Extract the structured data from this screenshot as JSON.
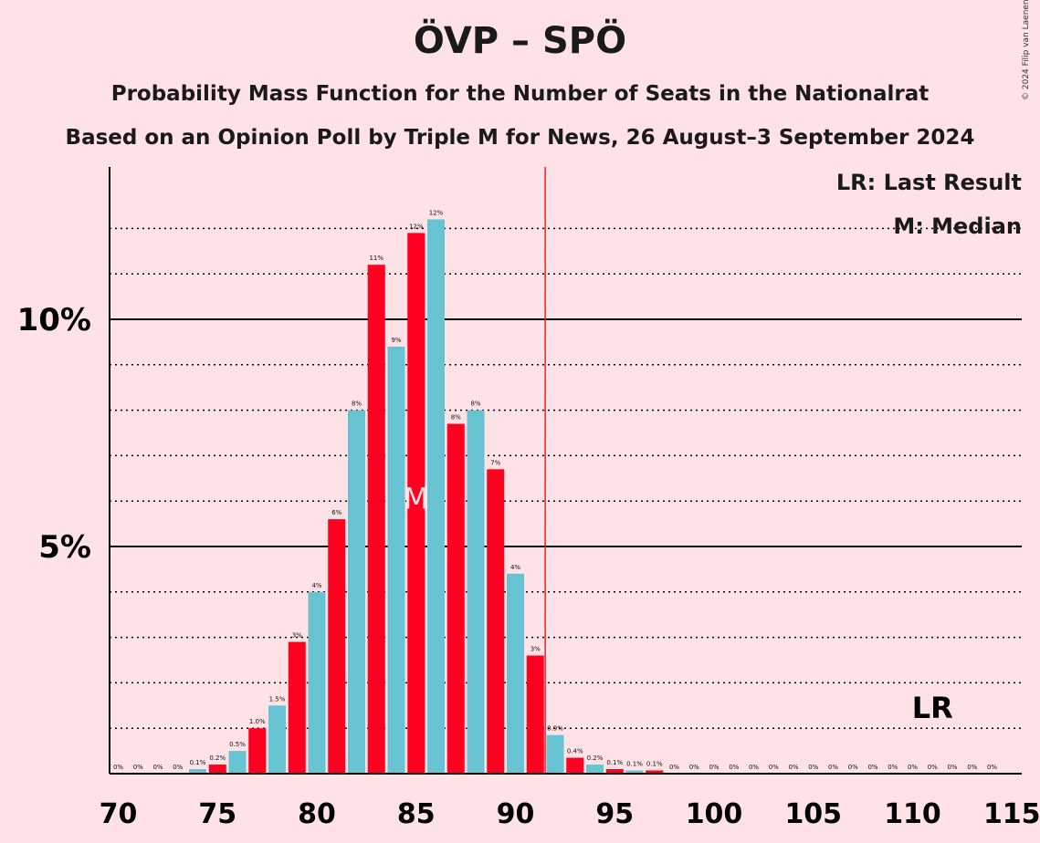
{
  "header": {
    "title": "ÖVP – SPÖ",
    "subtitle1": "Probability Mass Function for the Number of Seats in the Nationalrat",
    "subtitle2": "Based on an Opinion Poll by Triple M for News, 26 August–3 September 2024",
    "copyright": "© 2024 Filip van Laenen"
  },
  "legend": {
    "last_result": "LR: Last Result",
    "median": "M: Median"
  },
  "chart_data": {
    "type": "bar",
    "x": [
      70,
      71,
      72,
      73,
      74,
      75,
      76,
      77,
      78,
      79,
      80,
      81,
      82,
      83,
      84,
      85,
      86,
      87,
      88,
      89,
      90,
      91,
      92,
      93,
      94,
      95,
      96,
      97,
      98,
      99,
      100,
      101,
      102,
      103,
      104,
      105,
      106,
      107,
      108,
      109,
      110,
      111,
      112,
      113,
      114
    ],
    "values": [
      0,
      0,
      0,
      0,
      0.1,
      0.2,
      0.5,
      1.0,
      1.5,
      2.9,
      4.0,
      5.6,
      8.0,
      11.2,
      9.4,
      11.9,
      12.2,
      7.7,
      8.0,
      6.7,
      4.4,
      2.6,
      0.85,
      0.35,
      0.2,
      0.1,
      0.07,
      0.07,
      0,
      0,
      0,
      0,
      0,
      0,
      0,
      0,
      0,
      0,
      0,
      0,
      0,
      0,
      0,
      0,
      0
    ],
    "labels": [
      "0%",
      "0%",
      "0%",
      "0%",
      "0.1%",
      "0.2%",
      "0.5%",
      "1.0%",
      "1.5%",
      "3%",
      "4%",
      "6%",
      "8%",
      "11%",
      "9%",
      "12%",
      "12%",
      "8%",
      "8%",
      "7%",
      "4%",
      "3%",
      "0.9%",
      "0.4%",
      "0.2%",
      "0.1%",
      "0.1%",
      "0.1%",
      "0%",
      "0%",
      "0%",
      "0%",
      "0%",
      "0%",
      "0%",
      "0%",
      "0%",
      "0%",
      "0%",
      "0%",
      "0%",
      "0%",
      "0%",
      "0%",
      "0%"
    ],
    "colors": {
      "odd": "#FF0020",
      "even": "#67C3D1"
    },
    "xlim": [
      70,
      115
    ],
    "ylim": [
      0,
      13.4
    ],
    "xticks": [
      70,
      75,
      80,
      85,
      90,
      95,
      100,
      105,
      110,
      115
    ],
    "yticks_major": [
      {
        "value": 5,
        "label": "5%"
      },
      {
        "value": 10,
        "label": "10%"
      }
    ],
    "yticks_minor": [
      1,
      2,
      3,
      4,
      6,
      7,
      8,
      9,
      11,
      12
    ],
    "majority_line": 91.5,
    "majority_color": "#E8252F",
    "median": {
      "seat": 85,
      "label": "M"
    },
    "last_result": {
      "seat": 111,
      "label": "LR"
    }
  }
}
